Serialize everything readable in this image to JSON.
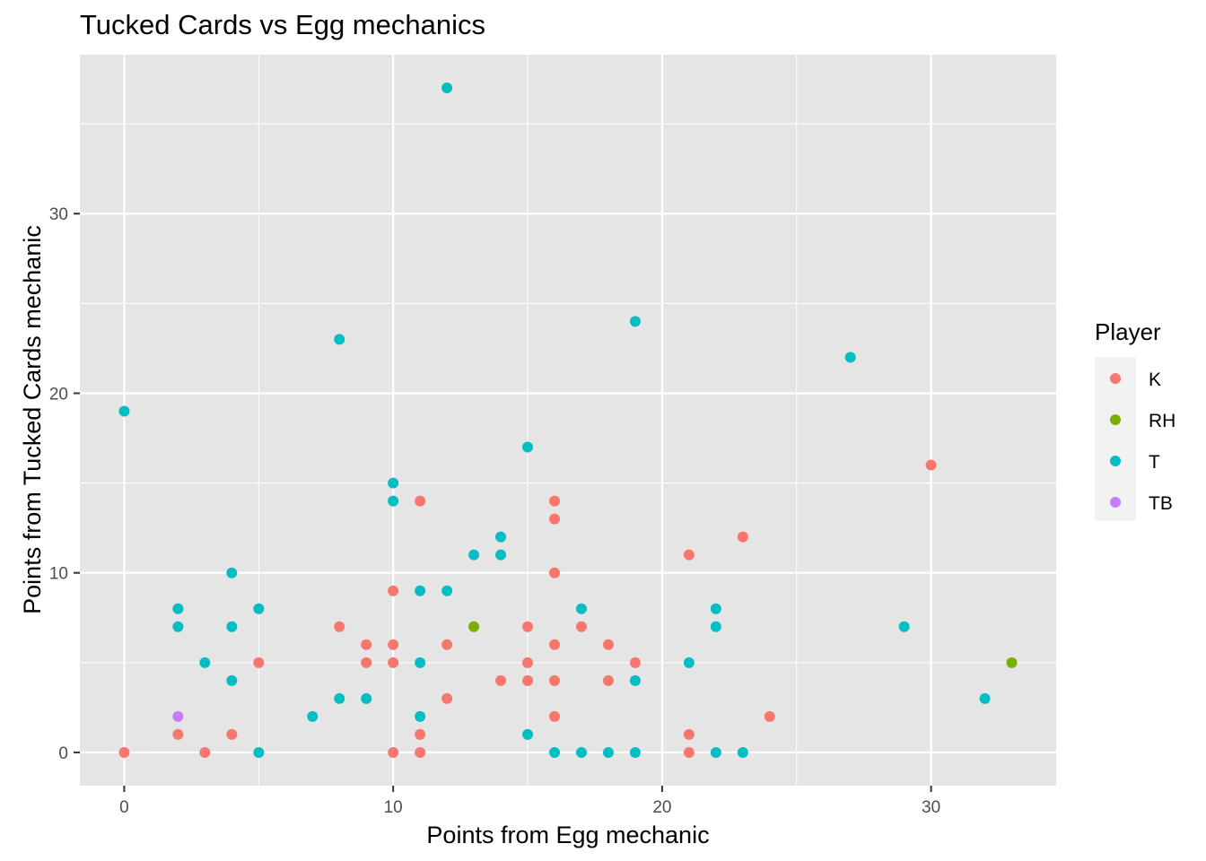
{
  "chart_data": {
    "type": "scatter",
    "title": "Tucked Cards vs Egg mechanics",
    "xlabel": "Points from Egg mechanic",
    "ylabel": "Points from Tucked Cards mechanic",
    "xlim": [
      -1.65,
      34.65
    ],
    "ylim": [
      -1.85,
      38.85
    ],
    "x_ticks": [
      0,
      10,
      20,
      30
    ],
    "y_ticks": [
      0,
      10,
      20,
      30
    ],
    "x_tick_labels": [
      "0",
      "10",
      "20",
      "30"
    ],
    "y_tick_labels": [
      "0",
      "10",
      "20",
      "30"
    ],
    "x_minor_ticks": [
      5,
      15,
      25
    ],
    "y_minor_ticks": [
      5,
      15,
      25,
      35
    ],
    "grid": true,
    "legend": {
      "title": "Player",
      "position": "right",
      "entries": [
        "K",
        "RH",
        "T",
        "TB"
      ]
    },
    "colors": {
      "K": "#f8766d",
      "RH": "#7cae00",
      "T": "#00bfc4",
      "TB": "#c77cff",
      "panel": "#e5e5e5",
      "grid": "#ffffff"
    },
    "series": [
      {
        "name": "K",
        "x": [
          0,
          2,
          3,
          4,
          5,
          8,
          9,
          9,
          10,
          10,
          10,
          10,
          11,
          11,
          11,
          12,
          12,
          14,
          15,
          15,
          15,
          16,
          16,
          16,
          16,
          16,
          16,
          17,
          18,
          18,
          19,
          21,
          21,
          21,
          23,
          24,
          30
        ],
        "y": [
          0,
          1,
          0,
          1,
          5,
          7,
          6,
          5,
          9,
          6,
          5,
          0,
          14,
          1,
          0,
          6,
          3,
          4,
          7,
          5,
          4,
          14,
          13,
          10,
          6,
          4,
          2,
          7,
          6,
          4,
          5,
          11,
          1,
          0,
          12,
          2,
          16
        ]
      },
      {
        "name": "RH",
        "x": [
          13,
          33
        ],
        "y": [
          7,
          5
        ]
      },
      {
        "name": "T",
        "x": [
          0,
          2,
          2,
          3,
          4,
          4,
          4,
          5,
          5,
          7,
          8,
          8,
          9,
          10,
          10,
          11,
          11,
          11,
          12,
          12,
          13,
          14,
          14,
          15,
          15,
          16,
          17,
          17,
          18,
          19,
          19,
          19,
          21,
          22,
          22,
          22,
          23,
          27,
          29,
          32
        ],
        "y": [
          19,
          8,
          7,
          5,
          10,
          7,
          4,
          8,
          0,
          2,
          23,
          3,
          3,
          15,
          14,
          9,
          5,
          2,
          37,
          9,
          11,
          12,
          11,
          17,
          1,
          0,
          8,
          0,
          0,
          24,
          4,
          0,
          5,
          8,
          7,
          0,
          0,
          22,
          7,
          3
        ]
      },
      {
        "name": "TB",
        "x": [
          2
        ],
        "y": [
          2
        ]
      }
    ]
  }
}
